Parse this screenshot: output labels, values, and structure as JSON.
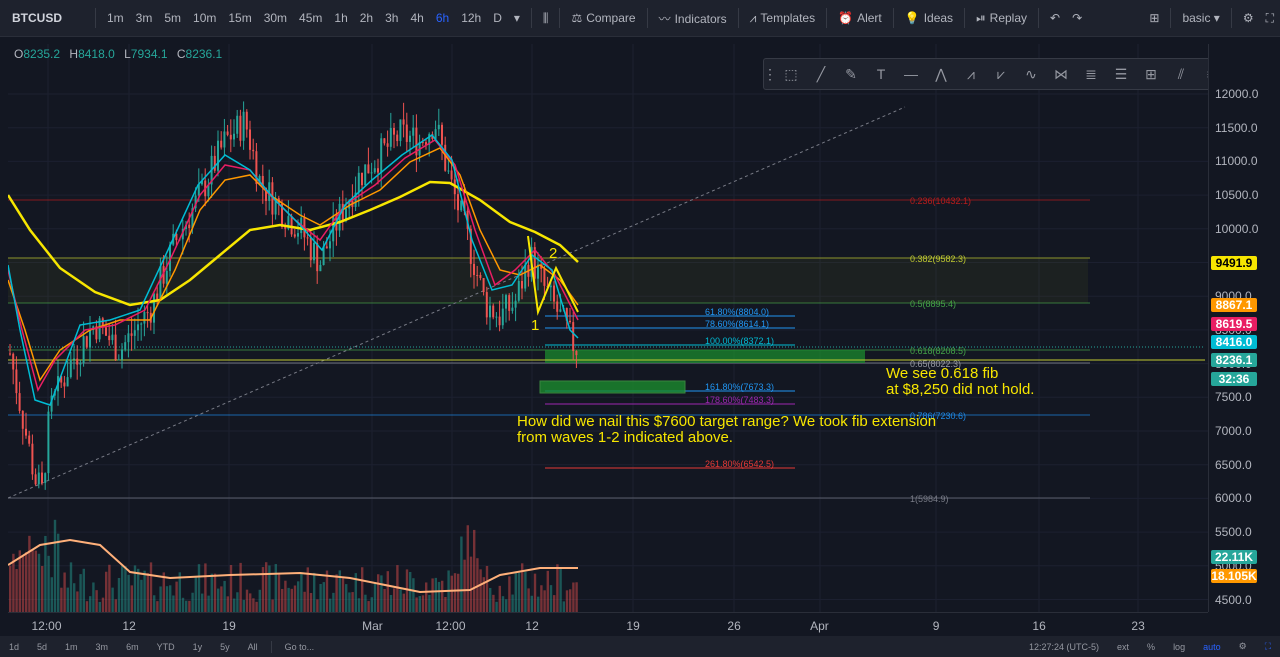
{
  "symbol": "BTCUSD",
  "intervals": [
    "1m",
    "3m",
    "5m",
    "10m",
    "15m",
    "30m",
    "45m",
    "1h",
    "2h",
    "3h",
    "4h",
    "6h",
    "12h",
    "D"
  ],
  "active_interval": "6h",
  "toolbar": {
    "compare": "Compare",
    "indicators": "Indicators",
    "templates": "Templates",
    "alert": "Alert",
    "ideas": "Ideas",
    "replay": "Replay",
    "layout": "basic"
  },
  "ohlc": {
    "o": "O",
    "o_val": "8235.2",
    "h": "H",
    "h_val": "8418.0",
    "l": "L",
    "l_val": "7934.1",
    "c": "C",
    "c_val": "8236.1"
  },
  "price_axis": [
    "12000.0",
    "11500.0",
    "11000.0",
    "10500.0",
    "10000.0",
    "9500.0",
    "9000.0",
    "8500.0",
    "8000.0",
    "7500.0",
    "7000.0",
    "6500.0",
    "6000.0",
    "5500.0",
    "5000.0",
    "4500.0"
  ],
  "price_tags": [
    {
      "text": "9491.9",
      "bg": "#f7e600",
      "fg": "#000000"
    },
    {
      "text": "8867.1",
      "bg": "#ff9800",
      "fg": "#ffffff"
    },
    {
      "text": "8619.5",
      "bg": "#e91e63",
      "fg": "#ffffff"
    },
    {
      "text": "8416.0",
      "bg": "#00bcd4",
      "fg": "#ffffff"
    },
    {
      "text": "8236.1",
      "bg": "#26a69a",
      "fg": "#ffffff"
    },
    {
      "text": "32:36",
      "bg": "#26a69a",
      "fg": "#ffffff"
    },
    {
      "text": "22.11K",
      "bg": "#26a69a",
      "fg": "#ffffff"
    },
    {
      "text": "18.105K",
      "bg": "#ff9800",
      "fg": "#ffffff"
    }
  ],
  "time_axis": [
    "12:00",
    "12",
    "19",
    "Mar",
    "12:00",
    "12",
    "19",
    "26",
    "Apr",
    "9",
    "16",
    "23"
  ],
  "fib_levels": [
    {
      "label": "0.236(10432.1)",
      "color": "#b71c1c"
    },
    {
      "label": "0.382(9582.3)",
      "color": "#c0ca33"
    },
    {
      "label": "0.5(8895.4)",
      "color": "#43a047"
    },
    {
      "label": "0.618(8208.5)",
      "color": "#43a047"
    },
    {
      "label": "0.65(8022.3)",
      "color": "#9598a1"
    },
    {
      "label": "0.786(7230.6)",
      "color": "#1e88e5"
    },
    {
      "label": "1(5984.9)",
      "color": "#787b86"
    }
  ],
  "fib_ext_levels": [
    {
      "label": "61.80%(8804.0)",
      "color": "#2196f3"
    },
    {
      "label": "78.60%(8614.1)",
      "color": "#2196f3"
    },
    {
      "label": "100.00%(8372.1)",
      "color": "#00bcd4"
    },
    {
      "label": "161.80%(7673.3)",
      "color": "#2196f3"
    },
    {
      "label": "178.60%(7483.3)",
      "color": "#9c27b0"
    },
    {
      "label": "261.80%(6542.5)",
      "color": "#e53935"
    }
  ],
  "annotations": {
    "wave1": "1",
    "wave2": "2",
    "note1_line1": "We see 0.618 fib",
    "note1_line2": "at $8,250 did not hold.",
    "note2_line1": "How did we nail this $7600 target range? We took fib extension",
    "note2_line2": "from waves 1-2 indicated above."
  },
  "bottombar": {
    "ranges": [
      "1d",
      "5d",
      "1m",
      "3m",
      "6m",
      "YTD",
      "1y",
      "5y",
      "All"
    ],
    "goto": "Go to...",
    "time": "12:27:24 (UTC-5)",
    "ext": "ext",
    "pct": "%",
    "log": "log",
    "auto": "auto"
  },
  "colors": {
    "up": "#26a69a",
    "down": "#ef5350",
    "ma_yellow": "#f7e600",
    "ma_orange": "#ff9800",
    "ma_pink": "#e91e63",
    "ma_cyan": "#00bcd4"
  }
}
